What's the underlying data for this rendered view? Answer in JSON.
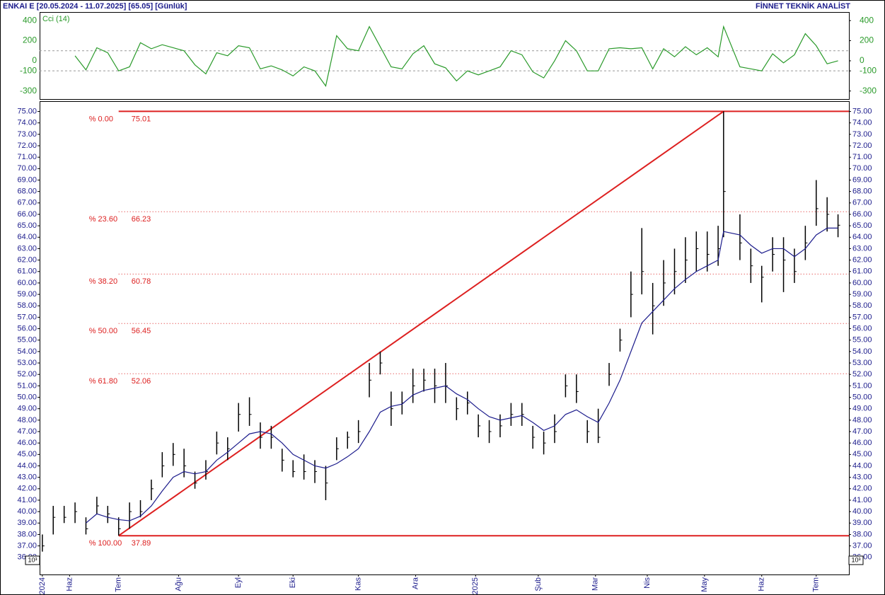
{
  "header": {
    "title": "ENKAI E  [20.05.2024 - 11.07.2025]  [65.05]  [Günlük]",
    "brand": "FİNNET TEKNİK ANALİST"
  },
  "chart_data": [
    {
      "type": "ohlc",
      "x": [
        0,
        4,
        8,
        12,
        16,
        20,
        24,
        28,
        32,
        36,
        40,
        44,
        48,
        52,
        56,
        60,
        64,
        68,
        72,
        76,
        80,
        84,
        88,
        92,
        96,
        100,
        104,
        108,
        112,
        116,
        120,
        124,
        128,
        132,
        136,
        140,
        144,
        148,
        152,
        156,
        160,
        164,
        168,
        172,
        176,
        180,
        184,
        188,
        192,
        196,
        200,
        204,
        208,
        212,
        216,
        220,
        224,
        228,
        232,
        236,
        240,
        244,
        248,
        250,
        256,
        260,
        264,
        268,
        272,
        276,
        280,
        284,
        288,
        292
      ],
      "high": [
        38,
        40.5,
        40.5,
        40.8,
        39.5,
        41.3,
        40.5,
        39.5,
        40.8,
        41,
        42.8,
        45.2,
        46,
        45.5,
        43.5,
        44.5,
        47,
        46.5,
        49.5,
        50,
        47.8,
        47.5,
        45.5,
        44.5,
        45,
        44.5,
        44,
        46.5,
        47,
        48,
        53,
        54,
        50.5,
        50.5,
        52.5,
        52.5,
        52.5,
        53,
        50,
        50.5,
        48.5,
        48,
        48.5,
        49.5,
        49.5,
        47.5,
        47,
        48.5,
        52,
        52,
        48,
        49,
        53,
        56,
        61,
        64.8,
        60,
        62,
        63,
        64,
        64.5,
        64.5,
        65,
        75.01,
        66,
        63,
        61.5,
        64,
        64,
        63,
        65,
        69,
        67.5,
        66
      ],
      "low": [
        36.5,
        38,
        39,
        39,
        38,
        39.8,
        39,
        37.9,
        38.5,
        39.5,
        41,
        43,
        44,
        43,
        42,
        42.8,
        45,
        44.5,
        47,
        47.5,
        45.5,
        45.5,
        43.5,
        43,
        42.8,
        42.5,
        41,
        44.5,
        45.5,
        46,
        50,
        52,
        47.5,
        48.5,
        49.5,
        50.5,
        49.5,
        49.5,
        48,
        48.5,
        46.5,
        46,
        46.5,
        47.5,
        47.5,
        45.5,
        45,
        46,
        50,
        49.5,
        46,
        46,
        51,
        54,
        57,
        59,
        55.5,
        58,
        59,
        60,
        61,
        61,
        61.5,
        64,
        62,
        60,
        58.3,
        61,
        59.2,
        60,
        62,
        65,
        64.5,
        64
      ],
      "close": [
        37,
        39.5,
        39.5,
        40,
        38.5,
        40.5,
        39.8,
        38.5,
        40,
        40,
        42,
        44,
        45,
        44,
        42.5,
        43.5,
        46,
        45.5,
        48.5,
        48.5,
        46.5,
        46.5,
        44.5,
        43.5,
        43.5,
        43.5,
        42.5,
        45.5,
        46.5,
        47,
        51.5,
        53,
        49,
        49.5,
        51,
        51.5,
        51,
        51,
        49,
        49.5,
        47.5,
        47,
        47.5,
        48.5,
        48.5,
        46.5,
        46,
        47,
        51,
        50.5,
        47,
        46.5,
        52,
        55,
        59,
        61,
        58,
        60,
        61,
        62,
        63,
        62.5,
        63,
        68,
        63.5,
        61.5,
        60.5,
        62.5,
        62,
        61,
        63.5,
        66.5,
        66,
        65.05
      ],
      "bar_color": "#000000",
      "ma": {
        "color": "#1c1c8c",
        "values": [
          null,
          null,
          null,
          null,
          39,
          39.8,
          39.5,
          39.3,
          39.2,
          39.6,
          40.5,
          41.8,
          43,
          43.5,
          43.3,
          43.5,
          44.5,
          45.2,
          46,
          46.8,
          47,
          46.8,
          46,
          45,
          44.5,
          44,
          43.8,
          44.2,
          44.8,
          45.5,
          47,
          48.7,
          49.2,
          49.4,
          50.2,
          50.6,
          50.8,
          51,
          50.3,
          49.8,
          49,
          48.3,
          48,
          48.2,
          48.4,
          47.8,
          47.1,
          47.5,
          48.5,
          48.9,
          48.3,
          47.8,
          49.5,
          51.5,
          54,
          56.5,
          57.5,
          58.5,
          59.5,
          60.3,
          61,
          61.5,
          62,
          64.5,
          64.2,
          63.3,
          62.6,
          63,
          63,
          62.3,
          63,
          64.2,
          64.8,
          64.8
        ]
      },
      "xlim": [
        -1,
        296
      ],
      "xticks": [
        {
          "value": 0,
          "label": "2024"
        },
        {
          "value": 10,
          "label": "Haz"
        },
        {
          "value": 28,
          "label": "Tem"
        },
        {
          "value": 50,
          "label": "Ağu"
        },
        {
          "value": 72,
          "label": "Eyl"
        },
        {
          "value": 92,
          "label": "Eki"
        },
        {
          "value": 116,
          "label": "Kas"
        },
        {
          "value": 137,
          "label": "Ara"
        },
        {
          "value": 159,
          "label": "2025"
        },
        {
          "value": 182,
          "label": "Şub"
        },
        {
          "value": 203,
          "label": "Mar"
        },
        {
          "value": 222,
          "label": "Nis"
        },
        {
          "value": 243,
          "label": "May"
        },
        {
          "value": 264,
          "label": "Haz"
        },
        {
          "value": 284,
          "label": "Tem"
        }
      ],
      "ylim": [
        34.5,
        75.9
      ],
      "yticks": [
        {
          "value": 36,
          "label": "36.00"
        },
        {
          "value": 37,
          "label": "37.00"
        },
        {
          "value": 38,
          "label": "38.00"
        },
        {
          "value": 39,
          "label": "39.00"
        },
        {
          "value": 40,
          "label": "40.00"
        },
        {
          "value": 41,
          "label": "41.00"
        },
        {
          "value": 42,
          "label": "42.00"
        },
        {
          "value": 43,
          "label": "43.00"
        },
        {
          "value": 44,
          "label": "44.00"
        },
        {
          "value": 45,
          "label": "45.00"
        },
        {
          "value": 46,
          "label": "46.00"
        },
        {
          "value": 47,
          "label": "47.00"
        },
        {
          "value": 48,
          "label": "48.00"
        },
        {
          "value": 49,
          "label": "49.00"
        },
        {
          "value": 50,
          "label": "50.00"
        },
        {
          "value": 51,
          "label": "51.00"
        },
        {
          "value": 52,
          "label": "52.00"
        },
        {
          "value": 53,
          "label": "53.00"
        },
        {
          "value": 54,
          "label": "54.00"
        },
        {
          "value": 55,
          "label": "55.00"
        },
        {
          "value": 56,
          "label": "56.00"
        },
        {
          "value": 57,
          "label": "57.00"
        },
        {
          "value": 58,
          "label": "58.00"
        },
        {
          "value": 59,
          "label": "59.00"
        },
        {
          "value": 60,
          "label": "60.00"
        },
        {
          "value": 61,
          "label": "61.00"
        },
        {
          "value": 62,
          "label": "62.00"
        },
        {
          "value": 63,
          "label": "63.00"
        },
        {
          "value": 64,
          "label": "64.00"
        },
        {
          "value": 65,
          "label": "65.00"
        },
        {
          "value": 66,
          "label": "66.00"
        },
        {
          "value": 67,
          "label": "67.00"
        },
        {
          "value": 68,
          "label": "68.00"
        },
        {
          "value": 69,
          "label": "69.00"
        },
        {
          "value": 70,
          "label": "70.00"
        },
        {
          "value": 71,
          "label": "71.00"
        },
        {
          "value": 72,
          "label": "72.00"
        },
        {
          "value": 73,
          "label": "73.00"
        },
        {
          "value": 74,
          "label": "74.00"
        },
        {
          "value": 75,
          "label": "75.00"
        }
      ],
      "scale_note": "10³",
      "fib": {
        "color": "#dd2020",
        "start_x": 28,
        "end_x": 250,
        "levels": [
          {
            "label": "% 0.00",
            "price": 75.01
          },
          {
            "label": "% 23.60",
            "price": 66.23
          },
          {
            "label": "% 38.20",
            "price": 60.78
          },
          {
            "label": "% 50.00",
            "price": 56.45
          },
          {
            "label": "% 61.80",
            "price": 52.06
          },
          {
            "label": "% 100.00",
            "price": 37.89
          }
        ]
      }
    },
    {
      "type": "line",
      "title": "Cci (14)",
      "x": [
        0,
        4,
        8,
        12,
        16,
        20,
        24,
        28,
        32,
        36,
        40,
        44,
        48,
        52,
        56,
        60,
        64,
        68,
        72,
        76,
        80,
        84,
        88,
        92,
        96,
        100,
        104,
        108,
        112,
        116,
        120,
        124,
        128,
        132,
        136,
        140,
        144,
        148,
        152,
        156,
        160,
        164,
        168,
        172,
        176,
        180,
        184,
        188,
        192,
        196,
        200,
        204,
        208,
        212,
        216,
        220,
        224,
        228,
        232,
        236,
        240,
        244,
        248,
        250,
        256,
        260,
        264,
        268,
        272,
        276,
        280,
        284,
        288,
        292
      ],
      "series": [
        {
          "color": "#2a9a2a",
          "values": [
            null,
            null,
            null,
            50,
            -90,
            130,
            80,
            -100,
            -60,
            180,
            120,
            160,
            130,
            100,
            -40,
            -130,
            80,
            50,
            150,
            130,
            -80,
            -50,
            -90,
            -150,
            -60,
            -100,
            -250,
            250,
            120,
            100,
            340,
            140,
            -60,
            -80,
            70,
            150,
            -30,
            -70,
            -200,
            -100,
            -140,
            -100,
            -60,
            100,
            60,
            -110,
            -170,
            0,
            200,
            100,
            -100,
            -100,
            120,
            130,
            120,
            130,
            -80,
            120,
            40,
            140,
            60,
            130,
            40,
            340,
            -60,
            -80,
            -100,
            70,
            -20,
            60,
            270,
            150,
            -30,
            0
          ]
        }
      ],
      "xlim": [
        -1,
        296
      ],
      "ylim": [
        -380,
        485
      ],
      "yticks": [
        -300,
        -100,
        0,
        200,
        400
      ],
      "reference_lines": [
        100,
        -100
      ]
    }
  ]
}
